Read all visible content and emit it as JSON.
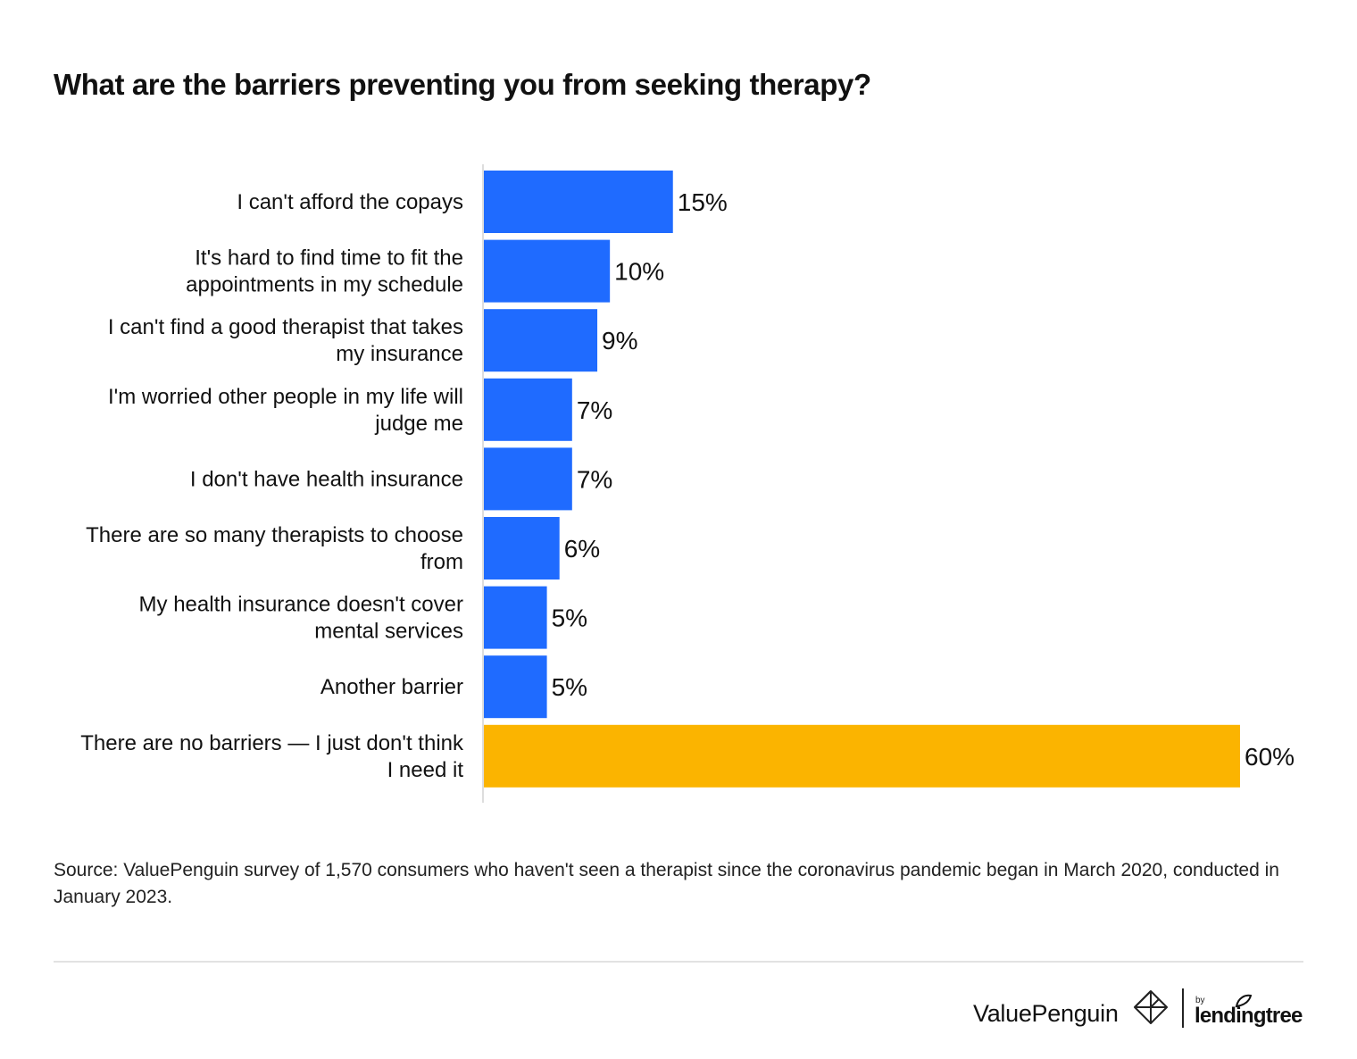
{
  "title": "What are the barriers preventing you from seeking therapy?",
  "source_note": "Source: ValuePenguin survey of 1,570 consumers who haven't seen a therapist since the coronavirus pandemic began in March 2020, conducted in January 2023.",
  "brands": {
    "valuepenguin": "ValuePenguin",
    "by": "by",
    "lendingtree": "lendingtree"
  },
  "colors": {
    "bar_default": "#1f6bff",
    "bar_highlight": "#fbb400",
    "axis": "#dddddd"
  },
  "icons": [
    "penguin-logo-icon",
    "leaf-icon"
  ],
  "chart_data": {
    "type": "bar",
    "orientation": "horizontal",
    "categories": [
      [
        "I can't afford the copays"
      ],
      [
        "It's hard to find time to fit the",
        "appointments in my schedule"
      ],
      [
        "I can't find a good therapist that takes",
        "my insurance"
      ],
      [
        "I'm worried other people in my life will",
        "judge me"
      ],
      [
        "I don't have health insurance"
      ],
      [
        "There are so many therapists to choose",
        "from"
      ],
      [
        "My health insurance doesn't cover",
        "mental services"
      ],
      [
        "Another barrier"
      ],
      [
        "There are no barriers — I just don't think",
        "I need it"
      ]
    ],
    "values": [
      15,
      10,
      9,
      7,
      7,
      6,
      5,
      5,
      60
    ],
    "value_labels": [
      "15%",
      "10%",
      "9%",
      "7%",
      "7%",
      "6%",
      "5%",
      "5%",
      "60%"
    ],
    "highlight_index": 8,
    "xlim": [
      0,
      60
    ],
    "unit": "%",
    "grid": false,
    "legend": "none"
  }
}
